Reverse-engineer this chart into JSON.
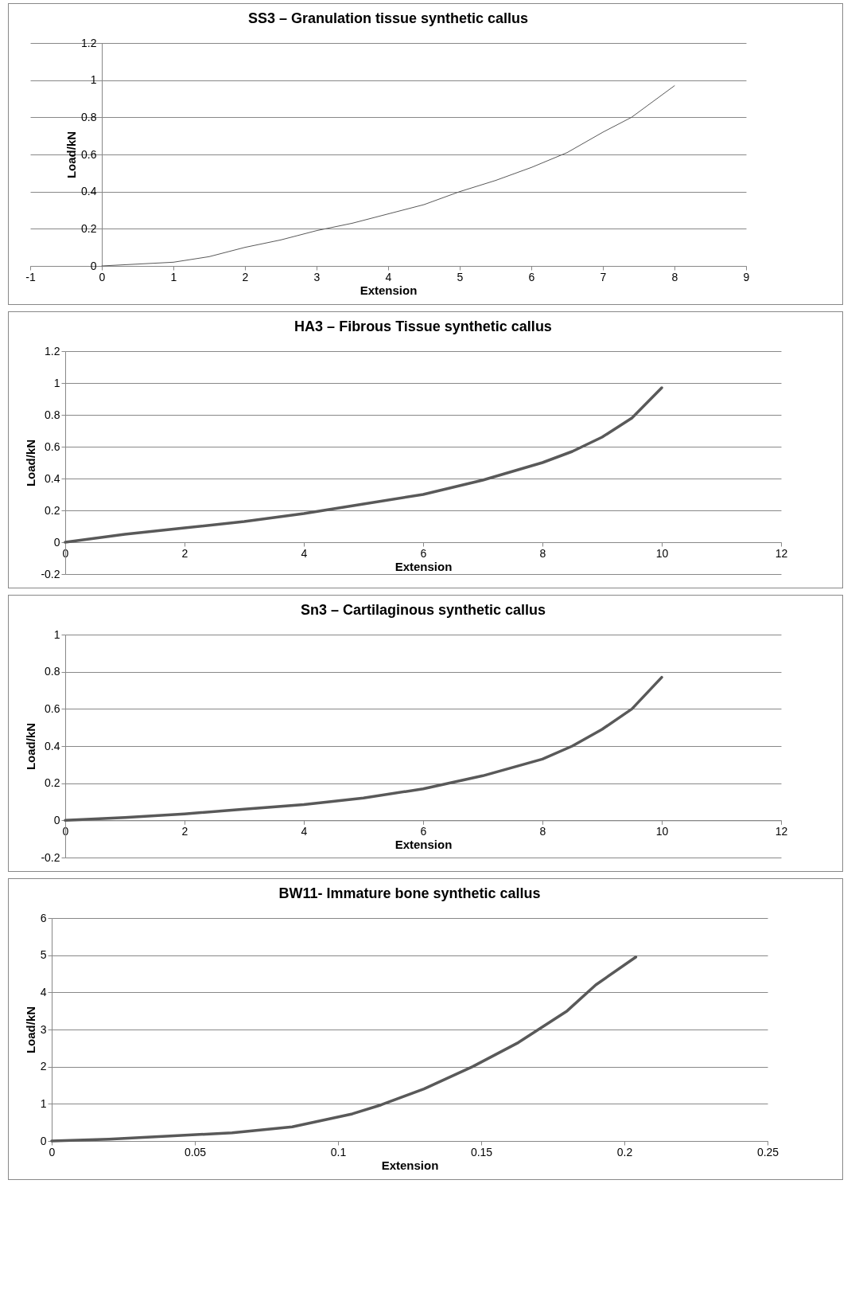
{
  "chart_data": [
    {
      "type": "line",
      "title": "SS3 – Granulation tissue synthetic callus",
      "xlabel": "Extension",
      "ylabel": "Load/kN",
      "xlim": [
        -1,
        9
      ],
      "xticks": [
        -1,
        0,
        1,
        2,
        3,
        4,
        5,
        6,
        7,
        8,
        9
      ],
      "ylim": [
        0,
        1.2
      ],
      "yticks": [
        0,
        0.2,
        0.4,
        0.6,
        0.8,
        1,
        1.2
      ],
      "grid": "y",
      "series": [
        {
          "color": "#595959",
          "x": [
            0,
            0.5,
            1,
            1.5,
            2,
            2.5,
            3,
            3.5,
            4,
            4.5,
            5,
            5.5,
            6,
            6.5,
            7,
            7.4,
            8
          ],
          "values": [
            0,
            0.01,
            0.02,
            0.05,
            0.1,
            0.14,
            0.19,
            0.23,
            0.28,
            0.33,
            0.4,
            0.46,
            0.53,
            0.61,
            0.72,
            0.8,
            0.97
          ]
        }
      ]
    },
    {
      "type": "line",
      "title": "HA3 – Fibrous Tissue synthetic callus",
      "xlabel": "Extension",
      "ylabel": "Load/kN",
      "xlim": [
        0,
        12
      ],
      "xticks": [
        0,
        2,
        4,
        6,
        8,
        10,
        12
      ],
      "ylim": [
        -0.2,
        1.2
      ],
      "yticks": [
        -0.2,
        0,
        0.2,
        0.4,
        0.6,
        0.8,
        1,
        1.2
      ],
      "grid": "y",
      "series": [
        {
          "color": "#595959",
          "x": [
            0,
            1,
            2,
            3,
            4,
            5,
            6,
            7,
            8,
            8.5,
            9,
            9.5,
            10
          ],
          "values": [
            0,
            0.05,
            0.09,
            0.13,
            0.18,
            0.24,
            0.3,
            0.39,
            0.5,
            0.57,
            0.66,
            0.78,
            0.97
          ]
        }
      ]
    },
    {
      "type": "line",
      "title": "Sn3 – Cartilaginous synthetic callus",
      "xlabel": "Extension",
      "ylabel": "Load/kN",
      "xlim": [
        0,
        12
      ],
      "xticks": [
        0,
        2,
        4,
        6,
        8,
        10,
        12
      ],
      "ylim": [
        -0.2,
        1
      ],
      "yticks": [
        -0.2,
        0,
        0.2,
        0.4,
        0.6,
        0.8,
        1
      ],
      "grid": "y",
      "series": [
        {
          "color": "#595959",
          "x": [
            0,
            1,
            2,
            3,
            4,
            5,
            6,
            7,
            8,
            8.5,
            9,
            9.5,
            10
          ],
          "values": [
            0,
            0.015,
            0.035,
            0.06,
            0.085,
            0.12,
            0.17,
            0.24,
            0.33,
            0.4,
            0.49,
            0.6,
            0.77
          ]
        }
      ]
    },
    {
      "type": "line",
      "title": "BW11- Immature bone synthetic callus",
      "xlabel": "Extension",
      "ylabel": "Load/kN",
      "xlim": [
        0,
        0.25
      ],
      "xticks": [
        0,
        0.05,
        0.1,
        0.15,
        0.2,
        0.25
      ],
      "ylim": [
        0,
        6
      ],
      "yticks": [
        0,
        1,
        2,
        3,
        4,
        5,
        6
      ],
      "grid": "y",
      "series": [
        {
          "color": "#595959",
          "x": [
            0,
            0.02,
            0.04,
            0.063,
            0.084,
            0.105,
            0.115,
            0.13,
            0.147,
            0.163,
            0.18,
            0.19,
            0.204
          ],
          "values": [
            0,
            0.05,
            0.13,
            0.22,
            0.38,
            0.73,
            0.97,
            1.4,
            2,
            2.65,
            3.5,
            4.2,
            4.95
          ]
        }
      ]
    }
  ]
}
